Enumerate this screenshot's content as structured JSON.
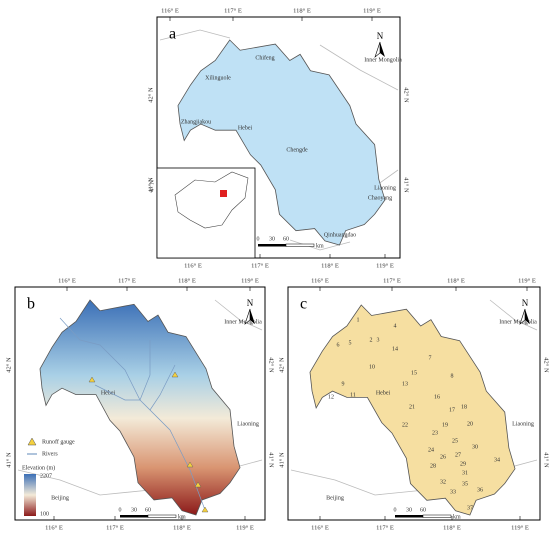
{
  "panels": [
    {
      "label": "a",
      "top_ticks": [
        "116° E",
        "117° E",
        "118° E",
        "119° E"
      ],
      "bottom_ticks": [
        "116° E",
        "117° E",
        "118° E",
        "119° E"
      ],
      "left_ticks": [
        "42° N",
        "41° N"
      ],
      "right_ticks": [
        "42° N",
        "41° N"
      ],
      "places": [
        "Xilinguole",
        "Chifeng",
        "Zhangjiakou",
        "Chengde",
        "Inner Mongolia",
        "Hebei",
        "Liaoning",
        "Chaoyang",
        "Qinhuangdao"
      ],
      "inset_ticks": [
        "4° N"
      ],
      "scale": [
        "0",
        "30",
        "60",
        "km"
      ],
      "north": "N"
    },
    {
      "label": "b",
      "top_ticks": [
        "116° E",
        "117° E",
        "118° E",
        "119° E"
      ],
      "bottom_ticks": [
        "116° E",
        "117° E",
        "118° E",
        "119° E"
      ],
      "left_ticks": [
        "42° N",
        "41° N"
      ],
      "right_ticks": [
        "42° N",
        "41° N"
      ],
      "places": [
        "Inner Mongolia",
        "Hebei",
        "Liaoning",
        "Beijing"
      ],
      "legend": {
        "items": [
          "Runoff gauge",
          "Rivers"
        ],
        "title": "Elevation (m)",
        "max": "2207",
        "min": "100"
      },
      "scale": [
        "0",
        "30",
        "60",
        "km"
      ],
      "north": "N"
    },
    {
      "label": "c",
      "top_ticks": [
        "116° E",
        "117° E",
        "118° E",
        "119° E"
      ],
      "bottom_ticks": [
        "116° E",
        "117° E",
        "118° E",
        "119° E"
      ],
      "left_ticks": [
        "42° N",
        "41° N"
      ],
      "right_ticks": [
        "42° N",
        "41° N"
      ],
      "places": [
        "Inner Mongolia",
        "Hebei",
        "Liaoning",
        "Beijing"
      ],
      "subbasins": [
        "1",
        "2",
        "3",
        "4",
        "5",
        "6",
        "7",
        "8",
        "9",
        "10",
        "11",
        "12",
        "13",
        "14",
        "15",
        "16",
        "17",
        "18",
        "19",
        "20",
        "21",
        "22",
        "23",
        "24",
        "25",
        "26",
        "27",
        "28",
        "29",
        "30",
        "31",
        "32",
        "33",
        "34",
        "35",
        "36",
        "37"
      ],
      "scale": [
        "0",
        "30",
        "60",
        "km"
      ],
      "north": "N"
    }
  ]
}
